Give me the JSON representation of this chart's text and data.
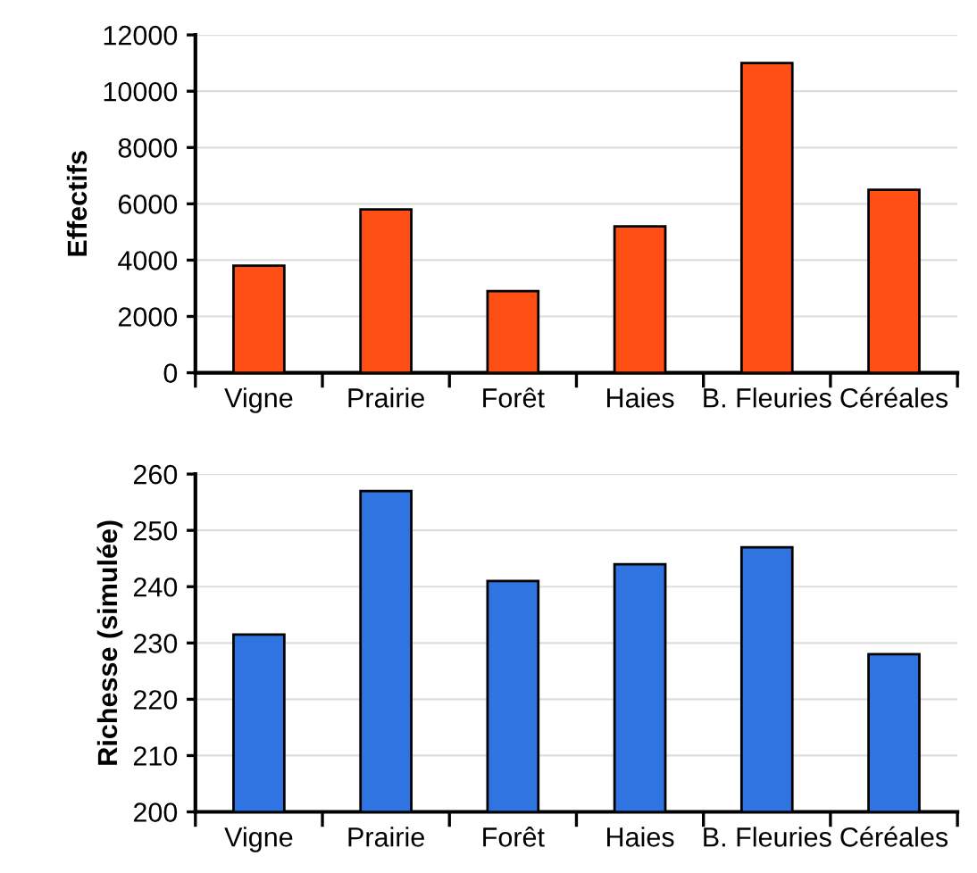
{
  "chart_data": [
    {
      "type": "bar",
      "ylabel": "Effectifs",
      "categories": [
        "Vigne",
        "Prairie",
        "Forêt",
        "Haies",
        "B. Fleuries",
        "Céréales"
      ],
      "values": [
        3800,
        5800,
        2900,
        5200,
        11000,
        6500
      ],
      "color": "#ff4f14",
      "ylim": [
        0,
        12000
      ],
      "yticks": [
        0,
        2000,
        4000,
        6000,
        8000,
        10000,
        12000
      ],
      "grid": "y"
    },
    {
      "type": "bar",
      "ylabel": "Richesse (simulée)",
      "categories": [
        "Vigne",
        "Prairie",
        "Forêt",
        "Haies",
        "B. Fleuries",
        "Céréales"
      ],
      "values": [
        231.5,
        257,
        241,
        244,
        247,
        228
      ],
      "color": "#2f74e0",
      "ylim": [
        200,
        260
      ],
      "yticks": [
        200,
        210,
        220,
        230,
        240,
        250,
        260
      ],
      "grid": "y"
    }
  ]
}
